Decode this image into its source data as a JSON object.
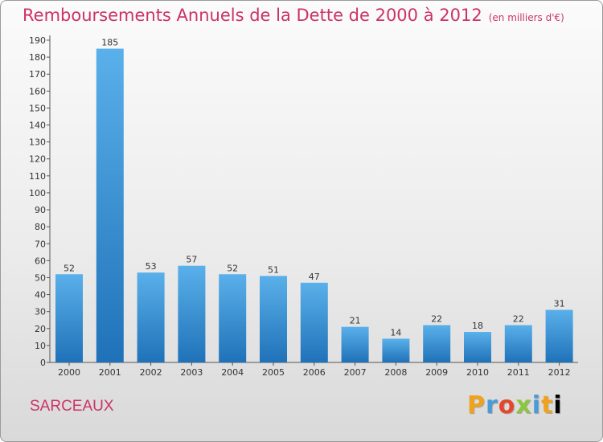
{
  "chart_data": {
    "type": "bar",
    "title": "Remboursements Annuels de la Dette de 2000 à 2012",
    "subtitle": "(en milliers d'€)",
    "categories": [
      "2000",
      "2001",
      "2002",
      "2003",
      "2004",
      "2005",
      "2006",
      "2007",
      "2008",
      "2009",
      "2010",
      "2011",
      "2012"
    ],
    "values": [
      52,
      185,
      53,
      57,
      52,
      51,
      47,
      21,
      14,
      22,
      18,
      22,
      31
    ],
    "ylim": [
      0,
      190
    ],
    "ytick_step": 10,
    "grid": false,
    "bar_color": "#3a96dc",
    "bar_color_dark": "#1f6fb3",
    "text_color": "#cc3366"
  },
  "footer": {
    "commune": "SARCEAUX",
    "brand": [
      "P",
      "r",
      "o",
      "x",
      "i",
      "t",
      "i"
    ]
  }
}
